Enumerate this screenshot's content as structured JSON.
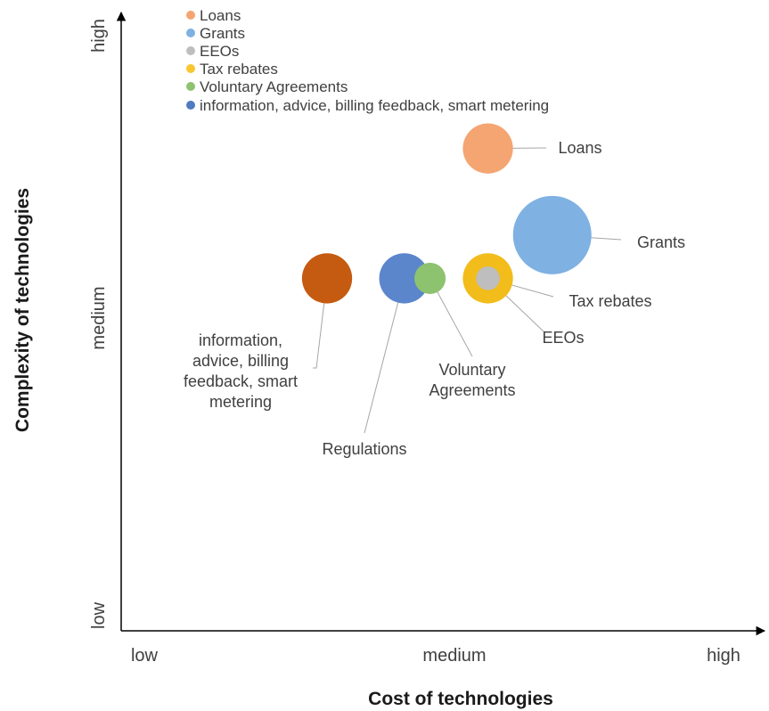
{
  "chart_data": {
    "type": "bubble",
    "xlabel": "Cost of technologies",
    "ylabel": "Complexity of technologies",
    "x_ticks": [
      "low",
      "medium",
      "high"
    ],
    "y_ticks": [
      "low",
      "medium",
      "high"
    ],
    "xlim": [
      0,
      1
    ],
    "ylim": [
      0,
      1
    ],
    "legend_position": "top-left",
    "legend": [
      {
        "name": "Loans",
        "color": "#F4A571"
      },
      {
        "name": "Grants",
        "color": "#7FB1E2"
      },
      {
        "name": "EEOs",
        "color": "#BEBEBE"
      },
      {
        "name": "Tax rebates",
        "color": "#F9C631"
      },
      {
        "name": "Voluntary Agreements",
        "color": "#8DC26F"
      },
      {
        "name": "information, advice, billing feedback, smart metering",
        "color": "#4F7CC0"
      }
    ],
    "series": [
      {
        "label_lines": [
          "Loans"
        ],
        "x": 0.57,
        "y": 0.78,
        "size": 0.18,
        "color": "#F4A571"
      },
      {
        "label_lines": [
          "Grants"
        ],
        "x": 0.67,
        "y": 0.64,
        "size": 0.44,
        "color": "#7FB1E2"
      },
      {
        "label_lines": [
          "Tax rebates"
        ],
        "x": 0.57,
        "y": 0.57,
        "size": 0.18,
        "color": "#F2BC1B"
      },
      {
        "label_lines": [
          "EEOs"
        ],
        "x": 0.57,
        "y": 0.57,
        "size": 0.04,
        "color": "#BEBEBE"
      },
      {
        "label_lines": [
          "Voluntary",
          "Agreements"
        ],
        "x": 0.48,
        "y": 0.57,
        "size": 0.07,
        "color": "#8DC26F"
      },
      {
        "label_lines": [
          "Regulations"
        ],
        "x": 0.44,
        "y": 0.57,
        "size": 0.18,
        "color": "#5B86CC"
      },
      {
        "label_lines": [
          "information,",
          "advice, billing",
          "feedback, smart",
          "metering"
        ],
        "x": 0.32,
        "y": 0.57,
        "size": 0.18,
        "color": "#C55A11"
      }
    ]
  }
}
